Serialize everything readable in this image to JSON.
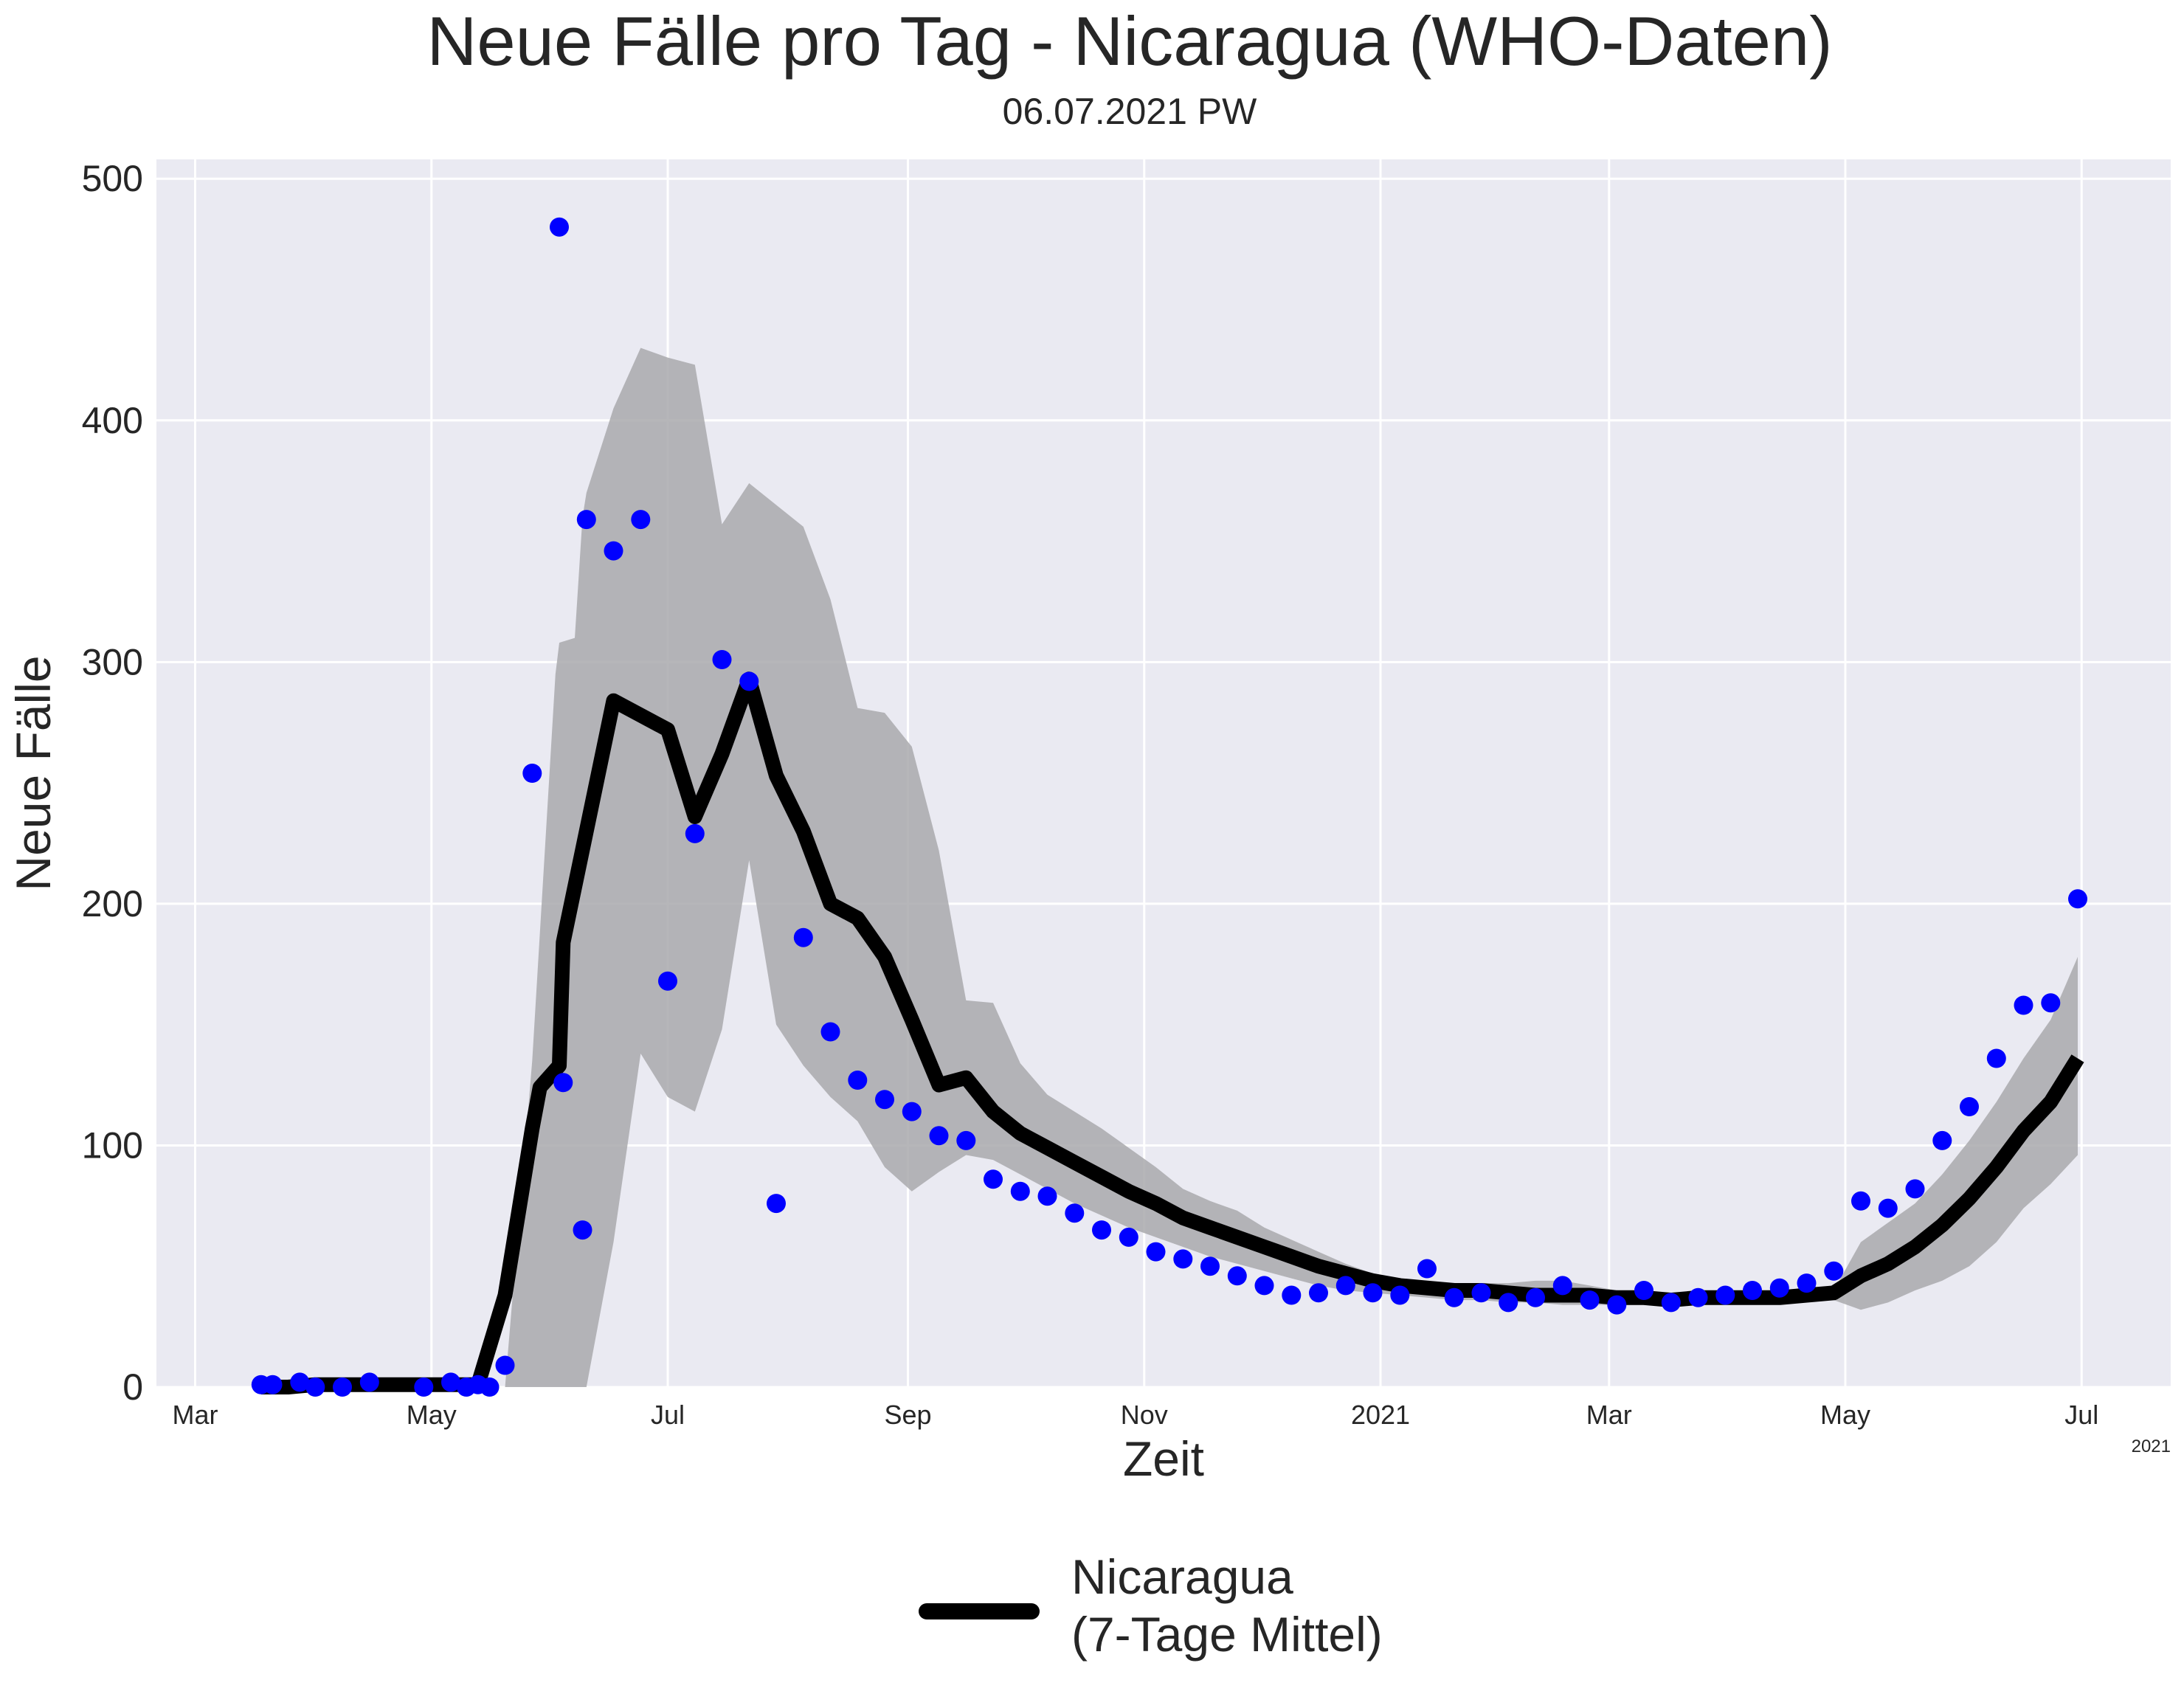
{
  "chart_data": {
    "type": "line",
    "title": "Neue Fälle pro Tag - Nicaragua (WHO-Daten)",
    "subtitle": "06.07.2021 PW",
    "xlabel": "Zeit",
    "ylabel": "Neue Fälle",
    "x_offset_label": "2021",
    "xlim": [
      "2020-02-20",
      "2021-07-24"
    ],
    "ylim": [
      0,
      508
    ],
    "grid": true,
    "legend_position": "bottom-center",
    "x_ticks": [
      {
        "date": "2020-03-01",
        "label": "Mar"
      },
      {
        "date": "2020-05-01",
        "label": "May"
      },
      {
        "date": "2020-07-01",
        "label": "Jul"
      },
      {
        "date": "2020-09-01",
        "label": "Sep"
      },
      {
        "date": "2020-11-01",
        "label": "Nov"
      },
      {
        "date": "2021-01-01",
        "label": "2021"
      },
      {
        "date": "2021-03-01",
        "label": "Mar"
      },
      {
        "date": "2021-05-01",
        "label": "May"
      },
      {
        "date": "2021-07-01",
        "label": "Jul"
      }
    ],
    "y_ticks": [
      0,
      100,
      200,
      300,
      400,
      500
    ],
    "colors": {
      "background": "#eaeaf2",
      "grid": "#ffffff",
      "points": "#0000ff",
      "line": "#000000",
      "band": "#a9a9ad"
    },
    "series": [
      {
        "name": "Nicaragua\n(7-Tage Mittel)",
        "type": "line",
        "points": [
          [
            "2020-03-18",
            0
          ],
          [
            "2020-03-25",
            0
          ],
          [
            "2020-04-01",
            1
          ],
          [
            "2020-04-08",
            1
          ],
          [
            "2020-04-15",
            1
          ],
          [
            "2020-04-22",
            1
          ],
          [
            "2020-04-29",
            1
          ],
          [
            "2020-05-06",
            1
          ],
          [
            "2020-05-13",
            1
          ],
          [
            "2020-05-20",
            38
          ],
          [
            "2020-05-27",
            107
          ],
          [
            "2020-05-29",
            124
          ],
          [
            "2020-06-03",
            133
          ],
          [
            "2020-06-04",
            184
          ],
          [
            "2020-06-17",
            284
          ],
          [
            "2020-07-01",
            272
          ],
          [
            "2020-07-08",
            236
          ],
          [
            "2020-07-15",
            262
          ],
          [
            "2020-07-22",
            293
          ],
          [
            "2020-07-29",
            253
          ],
          [
            "2020-08-05",
            230
          ],
          [
            "2020-08-12",
            200
          ],
          [
            "2020-08-19",
            194
          ],
          [
            "2020-08-26",
            178
          ],
          [
            "2020-09-02",
            152
          ],
          [
            "2020-09-09",
            125
          ],
          [
            "2020-09-16",
            128
          ],
          [
            "2020-09-23",
            114
          ],
          [
            "2020-09-30",
            105
          ],
          [
            "2020-10-07",
            99
          ],
          [
            "2020-10-14",
            93
          ],
          [
            "2020-10-21",
            87
          ],
          [
            "2020-10-28",
            81
          ],
          [
            "2020-11-04",
            76
          ],
          [
            "2020-11-11",
            70
          ],
          [
            "2020-11-18",
            66
          ],
          [
            "2020-11-25",
            62
          ],
          [
            "2020-12-02",
            58
          ],
          [
            "2020-12-09",
            54
          ],
          [
            "2020-12-16",
            50
          ],
          [
            "2020-12-23",
            47
          ],
          [
            "2020-12-30",
            44
          ],
          [
            "2021-01-06",
            42
          ],
          [
            "2021-01-13",
            41
          ],
          [
            "2021-01-20",
            40
          ],
          [
            "2021-01-27",
            40
          ],
          [
            "2021-02-03",
            39
          ],
          [
            "2021-02-10",
            38
          ],
          [
            "2021-02-17",
            38
          ],
          [
            "2021-02-24",
            38
          ],
          [
            "2021-03-03",
            37
          ],
          [
            "2021-03-10",
            37
          ],
          [
            "2021-03-17",
            36
          ],
          [
            "2021-03-24",
            37
          ],
          [
            "2021-03-31",
            37
          ],
          [
            "2021-04-07",
            37
          ],
          [
            "2021-04-14",
            37
          ],
          [
            "2021-04-21",
            38
          ],
          [
            "2021-04-28",
            39
          ],
          [
            "2021-05-05",
            46
          ],
          [
            "2021-05-12",
            51
          ],
          [
            "2021-05-19",
            58
          ],
          [
            "2021-05-26",
            67
          ],
          [
            "2021-06-02",
            78
          ],
          [
            "2021-06-09",
            91
          ],
          [
            "2021-06-16",
            106
          ],
          [
            "2021-06-23",
            118
          ],
          [
            "2021-06-30",
            136
          ]
        ]
      },
      {
        "type": "scatter",
        "points": [
          [
            "2020-03-18",
            1
          ],
          [
            "2020-03-21",
            1
          ],
          [
            "2020-03-28",
            2
          ],
          [
            "2020-04-01",
            0
          ],
          [
            "2020-04-08",
            0
          ],
          [
            "2020-04-15",
            2
          ],
          [
            "2020-04-29",
            0
          ],
          [
            "2020-05-06",
            2
          ],
          [
            "2020-05-10",
            0
          ],
          [
            "2020-05-13",
            1
          ],
          [
            "2020-05-16",
            0
          ],
          [
            "2020-05-20",
            9
          ],
          [
            "2020-05-27",
            254
          ],
          [
            "2020-06-03",
            480
          ],
          [
            "2020-06-04",
            126
          ],
          [
            "2020-06-09",
            65
          ],
          [
            "2020-06-10",
            359
          ],
          [
            "2020-06-17",
            346
          ],
          [
            "2020-06-24",
            359
          ],
          [
            "2020-07-01",
            168
          ],
          [
            "2020-07-08",
            229
          ],
          [
            "2020-07-15",
            301
          ],
          [
            "2020-07-22",
            292
          ],
          [
            "2020-07-29",
            76
          ],
          [
            "2020-08-05",
            186
          ],
          [
            "2020-08-12",
            147
          ],
          [
            "2020-08-19",
            127
          ],
          [
            "2020-08-26",
            119
          ],
          [
            "2020-09-02",
            114
          ],
          [
            "2020-09-09",
            104
          ],
          [
            "2020-09-16",
            102
          ],
          [
            "2020-09-23",
            86
          ],
          [
            "2020-09-30",
            81
          ],
          [
            "2020-10-07",
            79
          ],
          [
            "2020-10-14",
            72
          ],
          [
            "2020-10-21",
            65
          ],
          [
            "2020-10-28",
            62
          ],
          [
            "2020-11-04",
            56
          ],
          [
            "2020-11-11",
            53
          ],
          [
            "2020-11-18",
            50
          ],
          [
            "2020-11-25",
            46
          ],
          [
            "2020-12-02",
            42
          ],
          [
            "2020-12-09",
            38
          ],
          [
            "2020-12-16",
            39
          ],
          [
            "2020-12-23",
            42
          ],
          [
            "2020-12-30",
            39
          ],
          [
            "2021-01-06",
            38
          ],
          [
            "2021-01-13",
            49
          ],
          [
            "2021-01-20",
            37
          ],
          [
            "2021-01-27",
            39
          ],
          [
            "2021-02-03",
            35
          ],
          [
            "2021-02-10",
            37
          ],
          [
            "2021-02-17",
            42
          ],
          [
            "2021-02-24",
            36
          ],
          [
            "2021-03-03",
            34
          ],
          [
            "2021-03-10",
            40
          ],
          [
            "2021-03-17",
            35
          ],
          [
            "2021-03-24",
            37
          ],
          [
            "2021-03-31",
            38
          ],
          [
            "2021-04-07",
            40
          ],
          [
            "2021-04-14",
            41
          ],
          [
            "2021-04-21",
            43
          ],
          [
            "2021-04-28",
            48
          ],
          [
            "2021-05-05",
            77
          ],
          [
            "2021-05-12",
            74
          ],
          [
            "2021-05-19",
            82
          ],
          [
            "2021-05-26",
            102
          ],
          [
            "2021-06-02",
            116
          ],
          [
            "2021-06-09",
            136
          ],
          [
            "2021-06-16",
            158
          ],
          [
            "2021-06-23",
            159
          ],
          [
            "2021-06-30",
            202
          ]
        ]
      },
      {
        "type": "area",
        "points": [
          [
            "2020-05-20",
            0,
            0
          ],
          [
            "2020-05-27",
            0,
            135
          ],
          [
            "2020-06-02",
            0,
            295
          ],
          [
            "2020-06-03",
            0,
            308
          ],
          [
            "2020-06-07",
            0,
            310
          ],
          [
            "2020-06-09",
            0,
            360
          ],
          [
            "2020-06-10",
            0,
            370
          ],
          [
            "2020-06-17",
            60,
            405
          ],
          [
            "2020-06-24",
            138,
            430
          ],
          [
            "2020-07-01",
            120,
            426
          ],
          [
            "2020-07-08",
            114,
            423
          ],
          [
            "2020-07-15",
            148,
            357
          ],
          [
            "2020-07-22",
            218,
            374
          ],
          [
            "2020-07-29",
            150,
            365
          ],
          [
            "2020-08-05",
            133,
            356
          ],
          [
            "2020-08-12",
            120,
            326
          ],
          [
            "2020-08-19",
            110,
            281
          ],
          [
            "2020-08-26",
            91,
            279
          ],
          [
            "2020-09-02",
            81,
            265
          ],
          [
            "2020-09-09",
            89,
            222
          ],
          [
            "2020-09-16",
            96,
            160
          ],
          [
            "2020-09-23",
            94,
            159
          ],
          [
            "2020-09-30",
            88,
            134
          ],
          [
            "2020-10-07",
            82,
            121
          ],
          [
            "2020-10-14",
            76,
            114
          ],
          [
            "2020-10-21",
            71,
            107
          ],
          [
            "2020-10-28",
            66,
            99
          ],
          [
            "2020-11-04",
            62,
            91
          ],
          [
            "2020-11-11",
            58,
            82
          ],
          [
            "2020-11-18",
            54,
            77
          ],
          [
            "2020-11-25",
            51,
            73
          ],
          [
            "2020-12-02",
            48,
            66
          ],
          [
            "2020-12-09",
            45,
            61
          ],
          [
            "2020-12-16",
            42,
            56
          ],
          [
            "2020-12-23",
            40,
            51
          ],
          [
            "2020-12-30",
            39,
            47
          ],
          [
            "2021-01-06",
            38,
            45
          ],
          [
            "2021-01-13",
            37,
            43
          ],
          [
            "2021-01-20",
            36,
            42
          ],
          [
            "2021-01-27",
            36,
            43
          ],
          [
            "2021-02-03",
            35,
            43
          ],
          [
            "2021-02-10",
            35,
            44
          ],
          [
            "2021-02-17",
            34,
            44
          ],
          [
            "2021-02-24",
            34,
            42
          ],
          [
            "2021-03-03",
            34,
            40
          ],
          [
            "2021-03-10",
            34,
            39
          ],
          [
            "2021-03-17",
            34,
            38
          ],
          [
            "2021-03-24",
            34,
            38
          ],
          [
            "2021-03-31",
            35,
            38
          ],
          [
            "2021-04-07",
            35,
            39
          ],
          [
            "2021-04-14",
            35,
            39
          ],
          [
            "2021-04-21",
            36,
            40
          ],
          [
            "2021-04-28",
            36,
            40
          ],
          [
            "2021-05-05",
            32,
            60
          ],
          [
            "2021-05-12",
            35,
            68
          ],
          [
            "2021-05-19",
            40,
            76
          ],
          [
            "2021-05-26",
            44,
            88
          ],
          [
            "2021-06-02",
            50,
            102
          ],
          [
            "2021-06-09",
            60,
            118
          ],
          [
            "2021-06-16",
            74,
            136
          ],
          [
            "2021-06-23",
            84,
            152
          ],
          [
            "2021-06-30",
            96,
            178
          ]
        ]
      }
    ]
  }
}
